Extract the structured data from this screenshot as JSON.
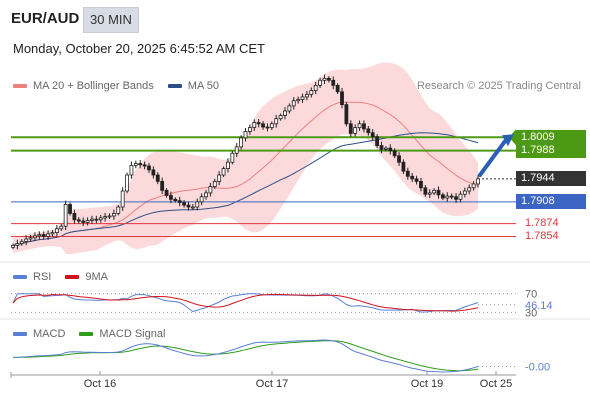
{
  "header": {
    "symbol": "EUR/AUD",
    "timeframe": "30 MIN",
    "datetime": "Monday, October 20, 2025 6:45:52 AM CET",
    "copyright": "Research © 2025 Trading Central"
  },
  "legends": {
    "price": [
      {
        "label": "MA 20 + Bollinger Bands",
        "color": "#f08080"
      },
      {
        "label": "MA 50",
        "color": "#2c4f86"
      }
    ],
    "rsi": [
      {
        "label": "RSI",
        "color": "#5b7fd4"
      },
      {
        "label": "9MA",
        "color": "#d0101a"
      }
    ],
    "macd": [
      {
        "label": "MACD",
        "color": "#5b7fd4"
      },
      {
        "label": "MACD Signal",
        "color": "#2e9e1a"
      }
    ]
  },
  "colors": {
    "candle": "#222222",
    "band_fill": "#fcd5d7",
    "ma20": "#f08080",
    "ma50": "#2c4f86",
    "resistance": "#4c9a14",
    "support": "#3b64c4",
    "level_red": "#e0383e",
    "current": "#333333",
    "arrow": "#2a5fb4"
  },
  "chart_data": [
    {
      "type": "candlestick",
      "title": "EUR/AUD",
      "x_ticks": [
        "Oct 16",
        "Oct 17",
        "Oct 19",
        "Oct 25"
      ],
      "ylim": [
        1.7825,
        1.8075
      ],
      "levels": [
        {
          "value": 1.8009,
          "label": "1.8009",
          "kind": "resistance"
        },
        {
          "value": 1.7988,
          "label": "1.7988",
          "kind": "resistance"
        },
        {
          "value": 1.7944,
          "label": "1.7944",
          "kind": "current"
        },
        {
          "value": 1.7908,
          "label": "1.7908",
          "kind": "support"
        },
        {
          "value": 1.7874,
          "label": "1.7874",
          "kind": "line"
        },
        {
          "value": 1.7854,
          "label": "1.7854",
          "kind": "line"
        }
      ],
      "forecast": {
        "from": 1.795,
        "to": 1.8009
      },
      "close": [
        1.784,
        1.7843,
        1.7846,
        1.785,
        1.7852,
        1.7855,
        1.7857,
        1.7854,
        1.7858,
        1.786,
        1.7866,
        1.787,
        1.7904,
        1.789,
        1.788,
        1.7878,
        1.7876,
        1.7879,
        1.7881,
        1.788,
        1.7883,
        1.7885,
        1.7886,
        1.789,
        1.79,
        1.7925,
        1.795,
        1.7965,
        1.7968,
        1.7966,
        1.7964,
        1.7958,
        1.795,
        1.794,
        1.7926,
        1.7918,
        1.7912,
        1.791,
        1.7907,
        1.7903,
        1.79,
        1.79,
        1.7908,
        1.7916,
        1.7922,
        1.7932,
        1.794,
        1.795,
        1.796,
        1.797,
        1.7984,
        1.7994,
        1.8008,
        1.8018,
        1.8024,
        1.8032,
        1.803,
        1.8025,
        1.8024,
        1.803,
        1.8038,
        1.8043,
        1.805,
        1.8058,
        1.8066,
        1.8068,
        1.8072,
        1.8076,
        1.8082,
        1.809,
        1.8098,
        1.8101,
        1.8098,
        1.809,
        1.808,
        1.806,
        1.803,
        1.8015,
        1.8024,
        1.803,
        1.8022,
        1.8016,
        1.801,
        1.7996,
        1.799,
        1.7992,
        1.7988,
        1.798,
        1.797,
        1.7956,
        1.7948,
        1.7944,
        1.794,
        1.793,
        1.792,
        1.7922,
        1.7926,
        1.7919,
        1.7914,
        1.7917,
        1.7916,
        1.7912,
        1.792,
        1.7925,
        1.793,
        1.7936,
        1.7944
      ]
    },
    {
      "type": "line",
      "title": "RSI",
      "series": [
        {
          "name": "RSI"
        },
        {
          "name": "9MA"
        }
      ],
      "y_ticks": [
        "70",
        "46.14",
        "30"
      ],
      "current": 46.14,
      "ylim": [
        20,
        80
      ]
    },
    {
      "type": "line",
      "title": "MACD",
      "series": [
        {
          "name": "MACD"
        },
        {
          "name": "MACD Signal"
        }
      ],
      "current_label": "-0.00",
      "current": -0.0002
    }
  ]
}
